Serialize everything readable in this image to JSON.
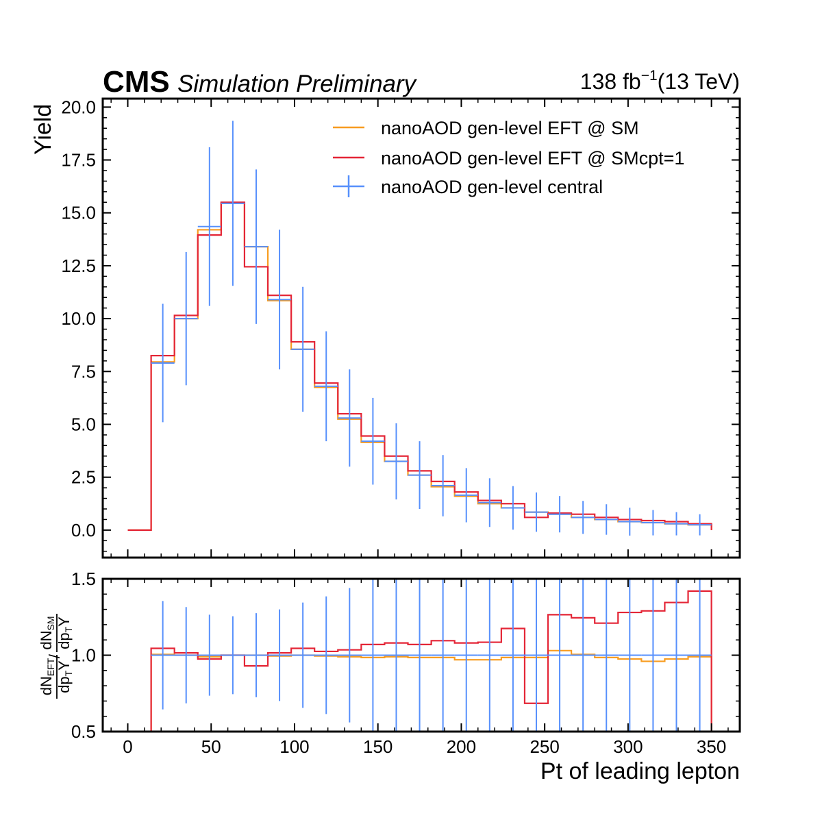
{
  "header": {
    "experiment": "CMS",
    "subtitle": "Simulation Preliminary",
    "lumi_value": "138 fb",
    "lumi_exp": "−1",
    "lumi_energy": "(13 TeV)"
  },
  "colors": {
    "sm": "#f89c20",
    "smcpt": "#e42536",
    "central": "#5790fc"
  },
  "chart_data": [
    {
      "type": "line",
      "role": "main",
      "xlabel": "Pt of leading lepton",
      "ylabel": "Yield",
      "xlim": [
        -15,
        367
      ],
      "ylim": [
        -1.3,
        20.4
      ],
      "yticks": [
        "0.0",
        "2.5",
        "5.0",
        "7.5",
        "10.0",
        "12.5",
        "15.0",
        "17.5",
        "20.0"
      ],
      "ytick_values": [
        0,
        2.5,
        5,
        7.5,
        10,
        12.5,
        15,
        17.5,
        20
      ],
      "legend_position": "top-right",
      "bin_edges": [
        0,
        14,
        28,
        42,
        56,
        70,
        84,
        98,
        112,
        126,
        140,
        154,
        168,
        182,
        196,
        210,
        224,
        238,
        252,
        266,
        280,
        294,
        308,
        322,
        336,
        350
      ],
      "series": [
        {
          "name": "nanoAOD gen-level EFT @ SM",
          "style": "step",
          "values": [
            0.0,
            7.95,
            10.0,
            14.2,
            15.45,
            13.4,
            10.85,
            8.55,
            6.75,
            5.25,
            4.15,
            3.25,
            2.6,
            2.05,
            1.6,
            1.25,
            1.05,
            0.85,
            0.75,
            0.6,
            0.5,
            0.4,
            0.35,
            0.3,
            0.25
          ]
        },
        {
          "name": "nanoAOD gen-level EFT @ SMcpt=1",
          "style": "step",
          "values": [
            0.0,
            8.25,
            10.15,
            13.95,
            15.5,
            12.45,
            11.1,
            8.9,
            6.95,
            5.5,
            4.45,
            3.5,
            2.8,
            2.3,
            1.8,
            1.4,
            1.25,
            0.6,
            0.8,
            0.75,
            0.6,
            0.5,
            0.45,
            0.4,
            0.3
          ]
        },
        {
          "name": "nanoAOD gen-level central",
          "style": "errorbar",
          "values": [
            0.0,
            7.9,
            10.0,
            14.35,
            15.45,
            13.4,
            10.9,
            8.55,
            6.8,
            5.3,
            4.2,
            3.25,
            2.6,
            2.1,
            1.65,
            1.3,
            1.05,
            0.85,
            0.75,
            0.6,
            0.5,
            0.4,
            0.35,
            0.3,
            0.25
          ],
          "errors": [
            0.0,
            2.8,
            3.15,
            3.75,
            3.9,
            3.65,
            3.3,
            2.95,
            2.6,
            2.3,
            2.05,
            1.8,
            1.6,
            1.45,
            1.28,
            1.15,
            1.03,
            0.93,
            0.86,
            0.78,
            0.72,
            0.66,
            0.6,
            0.55,
            0.5
          ]
        }
      ]
    },
    {
      "type": "line",
      "role": "ratio",
      "xlabel": "Pt of leading lepton",
      "ylabel": "dN_EFT/dpT / dN_SM/dpT",
      "xlim": [
        -15,
        367
      ],
      "ylim": [
        0.5,
        1.5
      ],
      "xticks": [
        "0",
        "50",
        "100",
        "150",
        "200",
        "250",
        "300",
        "350"
      ],
      "xtick_values": [
        0,
        50,
        100,
        150,
        200,
        250,
        300,
        350
      ],
      "yticks": [
        "0.5",
        "1.0",
        "1.5"
      ],
      "ytick_values": [
        0.5,
        1.0,
        1.5
      ],
      "bin_edges": [
        0,
        14,
        28,
        42,
        56,
        70,
        84,
        98,
        112,
        126,
        140,
        154,
        168,
        182,
        196,
        210,
        224,
        238,
        252,
        266,
        280,
        294,
        308,
        322,
        336,
        350
      ],
      "series": [
        {
          "name": "nanoAOD gen-level EFT @ SM",
          "style": "step",
          "values": [
            0.0,
            1.005,
            1.0,
            0.99,
            1.0,
            1.0,
            0.995,
            1.0,
            0.995,
            0.99,
            0.985,
            0.99,
            0.985,
            0.985,
            0.97,
            0.97,
            0.985,
            0.985,
            1.03,
            1.005,
            0.985,
            0.975,
            0.96,
            0.975,
            0.99
          ]
        },
        {
          "name": "nanoAOD gen-level EFT @ SMcpt=1",
          "style": "step",
          "values": [
            0.0,
            1.045,
            1.015,
            0.975,
            1.0,
            0.93,
            1.015,
            1.045,
            1.025,
            1.035,
            1.07,
            1.08,
            1.07,
            1.095,
            1.08,
            1.085,
            1.175,
            0.685,
            1.265,
            1.245,
            1.21,
            1.28,
            1.29,
            1.345,
            1.42
          ]
        },
        {
          "name": "nanoAOD gen-level central",
          "style": "errorbar",
          "values": [
            1.0,
            1.0,
            1.0,
            1.0,
            1.0,
            1.0,
            1.0,
            1.0,
            1.0,
            1.0,
            1.0,
            1.0,
            1.0,
            1.0,
            1.0,
            1.0,
            1.0,
            1.0,
            1.0,
            1.0,
            1.0,
            1.0,
            1.0,
            1.0,
            1.0
          ],
          "errors": [
            0.0,
            0.355,
            0.315,
            0.265,
            0.255,
            0.275,
            0.3,
            0.345,
            0.385,
            0.44,
            0.5,
            0.55,
            0.6,
            0.65,
            0.7,
            0.75,
            0.8,
            0.85,
            0.9,
            0.95,
            1.0,
            1.05,
            1.1,
            1.15,
            1.2
          ]
        }
      ]
    }
  ]
}
